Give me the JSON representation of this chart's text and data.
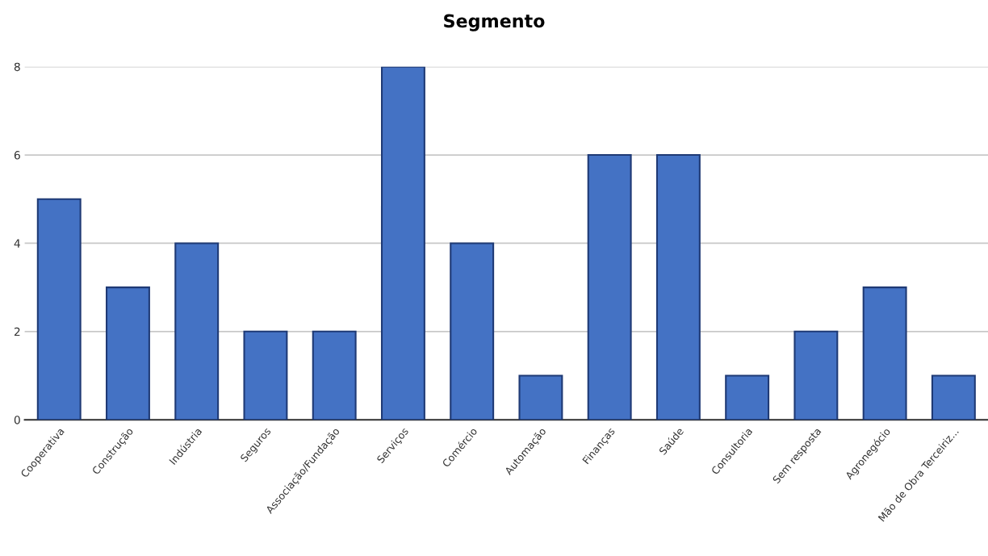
{
  "chart_data": {
    "type": "bar",
    "title": "Segmento",
    "categories": [
      "Cooperativa",
      "Construção",
      "Indústria",
      "Seguros",
      "Associação/Fundação",
      "Serviços",
      "Comércio",
      "Automação",
      "Finanças",
      "Saúde",
      "Consultoria",
      "Sem resposta",
      "Agronegócio",
      "Mão de Obra Terceiriz..."
    ],
    "values": [
      5,
      3,
      4,
      2,
      2,
      8,
      4,
      1,
      6,
      6,
      1,
      2,
      3,
      1
    ],
    "color": "#4472c4",
    "ylim": [
      0,
      8
    ],
    "yticks": [
      0,
      2,
      4,
      6,
      8
    ],
    "grid": "y"
  }
}
